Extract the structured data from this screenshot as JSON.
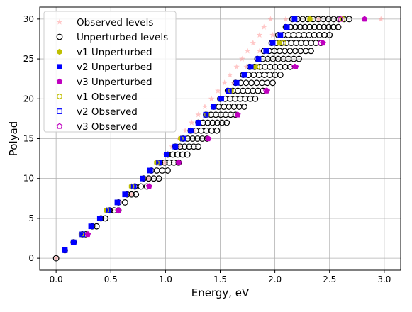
{
  "chart_data": {
    "type": "scatter",
    "title": "",
    "xlabel": "Energy, eV",
    "ylabel": "Polyad",
    "xlim": [
      -0.15,
      3.15
    ],
    "ylim": [
      -1.5,
      31.5
    ],
    "x_ticks": [
      0.0,
      0.5,
      1.0,
      1.5,
      2.0,
      2.5,
      3.0
    ],
    "x_tick_labels": [
      "0.0",
      "0.5",
      "1.0",
      "1.5",
      "2.0",
      "2.5",
      "3.0"
    ],
    "y_ticks": [
      0,
      5,
      10,
      15,
      20,
      25,
      30
    ],
    "y_tick_labels": [
      "0",
      "5",
      "10",
      "15",
      "20",
      "25",
      "30"
    ],
    "grid": true,
    "legend_position": "top-left",
    "colors": {
      "observed": "#ff9999",
      "unperturbed_edge": "#000000",
      "v1": "#bfbf00",
      "v2": "#0000ff",
      "v3": "#bf00bf",
      "grid": "#b0b0b0"
    },
    "series": [
      {
        "name": "Observed levels",
        "marker": "star",
        "points": [
          [
            0.0,
            0
          ],
          [
            0.08,
            1
          ],
          [
            0.16,
            2
          ],
          [
            0.24,
            3
          ],
          [
            0.29,
            3
          ],
          [
            0.32,
            4
          ],
          [
            0.42,
            5
          ],
          [
            0.51,
            6
          ],
          [
            0.56,
            6
          ],
          [
            0.58,
            7
          ],
          [
            0.65,
            8
          ],
          [
            0.69,
            8
          ],
          [
            0.72,
            9
          ],
          [
            0.79,
            10
          ],
          [
            0.84,
            10
          ],
          [
            0.86,
            11
          ],
          [
            0.93,
            12
          ],
          [
            0.99,
            12
          ],
          [
            1.0,
            13
          ],
          [
            1.06,
            14
          ],
          [
            1.12,
            14
          ],
          [
            1.12,
            15
          ],
          [
            1.18,
            16
          ],
          [
            1.26,
            16
          ],
          [
            1.24,
            17
          ],
          [
            1.3,
            18
          ],
          [
            1.38,
            18
          ],
          [
            1.36,
            19
          ],
          [
            1.42,
            20
          ],
          [
            1.5,
            20
          ],
          [
            1.48,
            21
          ],
          [
            1.54,
            22
          ],
          [
            1.62,
            22
          ],
          [
            1.59,
            23
          ],
          [
            1.65,
            24
          ],
          [
            1.74,
            24
          ],
          [
            1.7,
            25
          ],
          [
            1.75,
            26
          ],
          [
            1.86,
            26
          ],
          [
            1.8,
            27
          ],
          [
            1.86,
            28
          ],
          [
            1.98,
            28
          ],
          [
            1.9,
            29
          ],
          [
            1.96,
            30
          ],
          [
            2.1,
            30
          ],
          [
            2.4,
            30
          ],
          [
            2.6,
            30
          ],
          [
            2.97,
            30
          ]
        ]
      },
      {
        "name": "Unperturbed levels",
        "marker": "circle-open",
        "rows": [
          {
            "polyad": 0,
            "xmin": 0.0,
            "xmax": 0.0
          },
          {
            "polyad": 1,
            "xmin": 0.08,
            "xmax": 0.08
          },
          {
            "polyad": 2,
            "xmin": 0.16,
            "xmax": 0.16
          },
          {
            "polyad": 3,
            "xmin": 0.24,
            "xmax": 0.27
          },
          {
            "polyad": 4,
            "xmin": 0.33,
            "xmax": 0.37
          },
          {
            "polyad": 5,
            "xmin": 0.41,
            "xmax": 0.45
          },
          {
            "polyad": 6,
            "xmin": 0.49,
            "xmax": 0.57
          },
          {
            "polyad": 7,
            "xmin": 0.57,
            "xmax": 0.63
          },
          {
            "polyad": 8,
            "xmin": 0.65,
            "xmax": 0.73
          },
          {
            "polyad": 9,
            "xmin": 0.72,
            "xmax": 0.83
          },
          {
            "polyad": 10,
            "xmin": 0.8,
            "xmax": 0.94
          },
          {
            "polyad": 11,
            "xmin": 0.87,
            "xmax": 1.02
          },
          {
            "polyad": 12,
            "xmin": 0.95,
            "xmax": 1.12
          },
          {
            "polyad": 13,
            "xmin": 1.02,
            "xmax": 1.2
          },
          {
            "polyad": 14,
            "xmin": 1.09,
            "xmax": 1.3
          },
          {
            "polyad": 15,
            "xmin": 1.16,
            "xmax": 1.38
          },
          {
            "polyad": 16,
            "xmin": 1.23,
            "xmax": 1.47
          },
          {
            "polyad": 17,
            "xmin": 1.3,
            "xmax": 1.56
          },
          {
            "polyad": 18,
            "xmin": 1.37,
            "xmax": 1.64
          },
          {
            "polyad": 19,
            "xmin": 1.44,
            "xmax": 1.72
          },
          {
            "polyad": 20,
            "xmin": 1.5,
            "xmax": 1.82
          },
          {
            "polyad": 21,
            "xmin": 1.57,
            "xmax": 1.89
          },
          {
            "polyad": 22,
            "xmin": 1.64,
            "xmax": 1.98
          },
          {
            "polyad": 23,
            "xmin": 1.71,
            "xmax": 2.05
          },
          {
            "polyad": 24,
            "xmin": 1.77,
            "xmax": 2.14
          },
          {
            "polyad": 25,
            "xmin": 1.84,
            "xmax": 2.22
          },
          {
            "polyad": 26,
            "xmin": 1.9,
            "xmax": 2.33
          },
          {
            "polyad": 27,
            "xmin": 1.97,
            "xmax": 2.42
          },
          {
            "polyad": 28,
            "xmin": 2.03,
            "xmax": 2.5
          },
          {
            "polyad": 29,
            "xmin": 2.1,
            "xmax": 2.58
          },
          {
            "polyad": 30,
            "xmin": 2.16,
            "xmax": 2.68
          }
        ]
      },
      {
        "name": "v1 Unperturbed",
        "marker": "hexagon-filled",
        "points": [
          [
            0.23,
            3
          ],
          [
            0.46,
            6
          ],
          [
            0.69,
            9
          ],
          [
            0.92,
            12
          ],
          [
            1.14,
            15
          ],
          [
            1.37,
            18
          ],
          [
            1.59,
            21
          ],
          [
            1.82,
            24
          ],
          [
            2.04,
            27
          ],
          [
            2.32,
            30
          ]
        ]
      },
      {
        "name": "v2 Unperturbed",
        "marker": "square-filled",
        "points": [
          [
            0.08,
            1
          ],
          [
            0.16,
            2
          ],
          [
            0.24,
            3
          ],
          [
            0.32,
            4
          ],
          [
            0.4,
            5
          ],
          [
            0.48,
            6
          ],
          [
            0.56,
            7
          ],
          [
            0.63,
            8
          ],
          [
            0.71,
            9
          ],
          [
            0.79,
            10
          ],
          [
            0.86,
            11
          ],
          [
            0.94,
            12
          ],
          [
            1.01,
            13
          ],
          [
            1.09,
            14
          ],
          [
            1.16,
            15
          ],
          [
            1.23,
            16
          ],
          [
            1.3,
            17
          ],
          [
            1.37,
            18
          ],
          [
            1.44,
            19
          ],
          [
            1.51,
            20
          ],
          [
            1.58,
            21
          ],
          [
            1.65,
            22
          ],
          [
            1.72,
            23
          ],
          [
            1.78,
            24
          ],
          [
            1.85,
            25
          ],
          [
            1.92,
            26
          ],
          [
            1.98,
            27
          ],
          [
            2.05,
            28
          ],
          [
            2.11,
            29
          ],
          [
            2.18,
            30
          ]
        ]
      },
      {
        "name": "v3 Unperturbed",
        "marker": "pentagon-filled",
        "points": [
          [
            0.29,
            3
          ],
          [
            0.57,
            6
          ],
          [
            0.85,
            9
          ],
          [
            1.12,
            12
          ],
          [
            1.39,
            15
          ],
          [
            1.66,
            18
          ],
          [
            1.93,
            21
          ],
          [
            2.19,
            24
          ],
          [
            2.44,
            27
          ],
          [
            2.82,
            30
          ]
        ]
      },
      {
        "name": "v1 Observed",
        "marker": "hexagon-open",
        "points": [
          [
            0.23,
            3
          ],
          [
            0.46,
            6
          ],
          [
            0.69,
            9
          ],
          [
            0.92,
            12
          ],
          [
            1.14,
            15
          ],
          [
            1.38,
            18
          ],
          [
            1.6,
            21
          ],
          [
            1.84,
            24
          ],
          [
            2.08,
            27
          ],
          [
            2.62,
            30
          ]
        ]
      },
      {
        "name": "v2 Observed",
        "marker": "square-open",
        "points": [
          [
            0.08,
            1
          ],
          [
            0.16,
            2
          ],
          [
            0.24,
            3
          ],
          [
            0.32,
            4
          ],
          [
            0.4,
            5
          ],
          [
            0.48,
            6
          ],
          [
            0.56,
            7
          ],
          [
            0.63,
            8
          ],
          [
            0.71,
            9
          ],
          [
            0.79,
            10
          ],
          [
            0.86,
            11
          ],
          [
            0.94,
            12
          ],
          [
            1.01,
            13
          ],
          [
            1.09,
            14
          ],
          [
            1.16,
            15
          ],
          [
            1.23,
            16
          ],
          [
            1.3,
            17
          ],
          [
            1.37,
            18
          ],
          [
            1.44,
            19
          ],
          [
            1.51,
            20
          ],
          [
            1.58,
            21
          ],
          [
            1.65,
            22
          ],
          [
            1.72,
            23
          ],
          [
            1.78,
            24
          ],
          [
            1.85,
            25
          ],
          [
            1.92,
            26
          ],
          [
            1.98,
            27
          ],
          [
            2.05,
            28
          ],
          [
            2.11,
            29
          ],
          [
            2.18,
            30
          ]
        ]
      },
      {
        "name": "v3 Observed",
        "marker": "pentagon-open",
        "points": [
          [
            0.29,
            3
          ],
          [
            0.57,
            6
          ],
          [
            0.85,
            9
          ],
          [
            1.12,
            12
          ],
          [
            1.39,
            15
          ],
          [
            1.66,
            18
          ],
          [
            1.92,
            21
          ],
          [
            2.18,
            24
          ],
          [
            2.42,
            27
          ],
          [
            2.6,
            30
          ]
        ]
      }
    ]
  }
}
